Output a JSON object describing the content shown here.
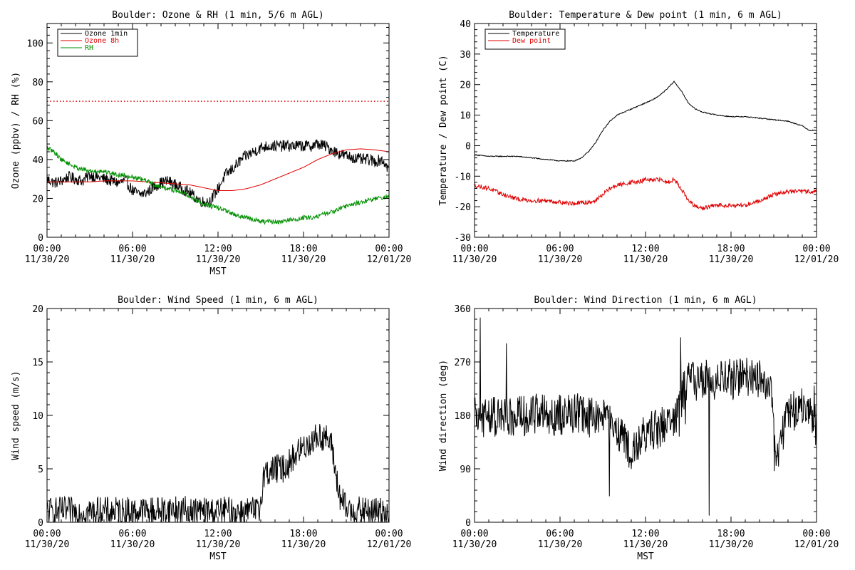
{
  "colors": {
    "background": "#ffffff",
    "axis": "#000000",
    "ozone_1min": "#000000",
    "ozone_8h": "#e00000",
    "rh": "#009000",
    "temperature": "#000000",
    "dew_point": "#e00000",
    "wind": "#000000",
    "threshold": "#e00000"
  },
  "chart_data": [
    {
      "type": "line",
      "title": "Boulder: Ozone & RH (1 min, 5/6 m AGL)",
      "xlabel": "MST",
      "ylabel": "Ozone (ppbv) / RH (%)",
      "xlim": [
        0,
        24
      ],
      "ylim": [
        0,
        110
      ],
      "x_tick_values": [
        0,
        6,
        12,
        18,
        24
      ],
      "x_tick_labels": [
        [
          "00:00",
          "11/30/20"
        ],
        [
          "06:00",
          "11/30/20"
        ],
        [
          "12:00",
          "11/30/20"
        ],
        [
          "18:00",
          "11/30/20"
        ],
        [
          "00:00",
          "12/01/20"
        ]
      ],
      "y_ticks": [
        0,
        20,
        40,
        60,
        80,
        100
      ],
      "legend_position": "top-left",
      "threshold_line": {
        "value": 70,
        "style": "dotted",
        "color": "#e00000"
      },
      "series": [
        {
          "name": "Ozone 1min",
          "color": "#000000",
          "noise": 3.0,
          "x": [
            0,
            0.5,
            1,
            1.5,
            2,
            2.5,
            3,
            3.5,
            4,
            4.5,
            5,
            5.5,
            6,
            6.5,
            7,
            7.5,
            8,
            8.5,
            9,
            9.5,
            10,
            10.5,
            11,
            11.5,
            12,
            12.5,
            13,
            13.5,
            14,
            14.5,
            15,
            15.5,
            16,
            16.5,
            17,
            17.5,
            18,
            18.5,
            19,
            19.5,
            20,
            20.5,
            21,
            21.5,
            22,
            22.5,
            23,
            23.5,
            24
          ],
          "y": [
            30,
            28,
            29,
            31,
            30,
            29,
            32,
            31,
            30,
            29,
            28,
            29,
            24,
            22,
            23,
            26,
            28,
            29,
            27,
            25,
            23,
            20,
            18,
            19,
            25,
            32,
            35,
            39,
            42,
            44,
            46,
            47,
            47,
            47,
            47,
            47,
            47,
            47,
            48,
            47,
            45,
            43,
            42,
            41,
            40,
            40,
            39,
            40,
            35
          ]
        },
        {
          "name": "Ozone 8h",
          "color": "#e00000",
          "noise": 0,
          "x": [
            0,
            1,
            2,
            3,
            4,
            5,
            6,
            7,
            8,
            9,
            10,
            11,
            12,
            13,
            14,
            15,
            16,
            17,
            18,
            19,
            20,
            21,
            22,
            23,
            24
          ],
          "y": [
            28.5,
            28.5,
            28.5,
            28.5,
            29,
            29,
            29,
            28.5,
            28,
            27.5,
            27,
            25.5,
            24,
            24,
            25,
            27,
            30,
            33,
            36,
            40,
            43,
            45,
            45.5,
            45,
            44
          ]
        },
        {
          "name": "RH",
          "color": "#009000",
          "noise": 1.2,
          "x": [
            0,
            0.5,
            1,
            1.5,
            2,
            2.5,
            3,
            3.5,
            4,
            4.5,
            5,
            5.5,
            6,
            6.5,
            7,
            7.5,
            8,
            8.5,
            9,
            9.5,
            10,
            10.5,
            11,
            11.5,
            12,
            12.5,
            13,
            13.5,
            14,
            14.5,
            15,
            15.5,
            16,
            16.5,
            17,
            17.5,
            18,
            18.5,
            19,
            19.5,
            20,
            20.5,
            21,
            21.5,
            22,
            22.5,
            23,
            23.5,
            24
          ],
          "y": [
            46,
            44,
            40,
            38,
            36,
            35,
            34,
            34,
            34,
            33,
            32,
            32,
            31,
            30,
            29,
            27,
            26,
            25,
            24,
            23,
            21,
            19,
            17,
            16,
            15,
            14,
            12,
            11,
            10,
            9,
            8,
            8,
            8,
            8,
            9,
            9,
            10,
            10,
            11,
            12,
            13,
            15,
            16,
            17,
            18,
            19,
            20,
            20,
            21
          ]
        }
      ]
    },
    {
      "type": "line",
      "title": "Boulder: Temperature & Dew point (1 min, 6 m AGL)",
      "xlabel": "",
      "ylabel": "Temperature / Dew point (C)",
      "xlim": [
        0,
        24
      ],
      "ylim": [
        -30,
        40
      ],
      "x_tick_values": [
        0,
        6,
        12,
        18,
        24
      ],
      "x_tick_labels": [
        [
          "00:00",
          "11/30/20"
        ],
        [
          "06:00",
          "11/30/20"
        ],
        [
          "12:00",
          "11/30/20"
        ],
        [
          "18:00",
          "11/30/20"
        ],
        [
          "00:00",
          "12/01/20"
        ]
      ],
      "y_ticks": [
        -30,
        -20,
        -10,
        0,
        10,
        20,
        30,
        40
      ],
      "legend_position": "top-left",
      "series": [
        {
          "name": "Temperature",
          "color": "#000000",
          "noise": 0.15,
          "x": [
            0,
            1,
            2,
            3,
            4,
            5,
            6,
            7,
            7.5,
            8,
            8.5,
            9,
            9.5,
            10,
            10.5,
            11,
            11.5,
            12,
            12.5,
            13,
            13.5,
            14,
            14.5,
            15,
            15.5,
            16,
            17,
            18,
            19,
            20,
            21,
            22,
            23,
            23.5,
            24
          ],
          "y": [
            -3,
            -3.5,
            -3.5,
            -3.5,
            -4,
            -4.5,
            -5,
            -5,
            -4,
            -2,
            1,
            5,
            8,
            10,
            11,
            12,
            13,
            14,
            15,
            16.5,
            18.5,
            21,
            18,
            14,
            12,
            11,
            10,
            9.5,
            9.5,
            9,
            8.5,
            8,
            6.5,
            5,
            5
          ]
        },
        {
          "name": "Dew point",
          "color": "#e00000",
          "noise": 0.7,
          "x": [
            0,
            1,
            2,
            3,
            4,
            5,
            6,
            7,
            8,
            8.5,
            9,
            9.5,
            10,
            10.5,
            11,
            11.5,
            12,
            12.5,
            13,
            13.5,
            14,
            14.5,
            15,
            15.5,
            16,
            17,
            18,
            19,
            20,
            21,
            22,
            23,
            24
          ],
          "y": [
            -13,
            -14,
            -16,
            -17.5,
            -18,
            -18,
            -18.5,
            -19,
            -18.5,
            -18,
            -16,
            -14,
            -13,
            -12.5,
            -12,
            -12,
            -11,
            -11.5,
            -11,
            -12,
            -11,
            -14,
            -18,
            -20,
            -20.5,
            -19.5,
            -19.5,
            -19.5,
            -18,
            -16,
            -15,
            -15,
            -15
          ]
        }
      ]
    },
    {
      "type": "line",
      "title": "Boulder: Wind Speed (1 min, 6 m AGL)",
      "xlabel": "MST",
      "ylabel": "Wind speed (m/s)",
      "xlim": [
        0,
        24
      ],
      "ylim": [
        0,
        20
      ],
      "x_tick_values": [
        0,
        6,
        12,
        18,
        24
      ],
      "x_tick_labels": [
        [
          "00:00",
          "11/30/20"
        ],
        [
          "06:00",
          "11/30/20"
        ],
        [
          "12:00",
          "11/30/20"
        ],
        [
          "18:00",
          "11/30/20"
        ],
        [
          "00:00",
          "12/01/20"
        ]
      ],
      "y_ticks": [
        0,
        5,
        10,
        15,
        20
      ],
      "series": [
        {
          "name": "",
          "color": "#000000",
          "noise": 1.4,
          "clip_min": 0,
          "x": [
            0,
            1,
            2,
            3,
            4,
            5,
            6,
            7,
            8,
            9,
            10,
            11,
            12,
            13,
            14,
            14.9,
            15.2,
            16,
            16.5,
            17,
            17.5,
            18,
            18.5,
            19,
            19.5,
            20,
            20.5,
            21,
            22,
            23,
            24
          ],
          "y": [
            1,
            1,
            1,
            1,
            1,
            1,
            1,
            1,
            1.1,
            1.2,
            1,
            1,
            1,
            1,
            1,
            1,
            4.5,
            5,
            5,
            5.5,
            6.5,
            7,
            7.5,
            8,
            8,
            7,
            2.5,
            1.2,
            1,
            1,
            1
          ]
        }
      ]
    },
    {
      "type": "line",
      "title": "Boulder: Wind Direction (1 min, 6 m AGL)",
      "xlabel": "MST",
      "ylabel": "Wind direction (deg)",
      "xlim": [
        0,
        24
      ],
      "ylim": [
        0,
        360
      ],
      "x_tick_values": [
        0,
        6,
        12,
        18,
        24
      ],
      "x_tick_labels": [
        [
          "00:00",
          "11/30/20"
        ],
        [
          "06:00",
          "11/30/20"
        ],
        [
          "12:00",
          "11/30/20"
        ],
        [
          "18:00",
          "11/30/20"
        ],
        [
          "00:00",
          "12/01/20"
        ]
      ],
      "y_ticks": [
        0,
        90,
        180,
        270,
        360
      ],
      "series": [
        {
          "name": "",
          "color": "#000000",
          "noise": 35,
          "spike_rate": 0.03,
          "clip_min": 0,
          "clip_max": 360,
          "x": [
            0,
            1,
            2,
            3,
            4,
            5,
            6,
            7,
            8,
            9,
            10,
            11,
            12,
            13,
            14,
            14.8,
            15,
            16,
            17,
            18,
            19,
            20,
            20.8,
            21.2,
            22,
            23,
            24
          ],
          "y": [
            175,
            180,
            175,
            180,
            180,
            180,
            180,
            185,
            180,
            175,
            160,
            110,
            150,
            160,
            170,
            230,
            238,
            240,
            240,
            240,
            245,
            240,
            240,
            110,
            180,
            200,
            160
          ]
        }
      ]
    }
  ]
}
